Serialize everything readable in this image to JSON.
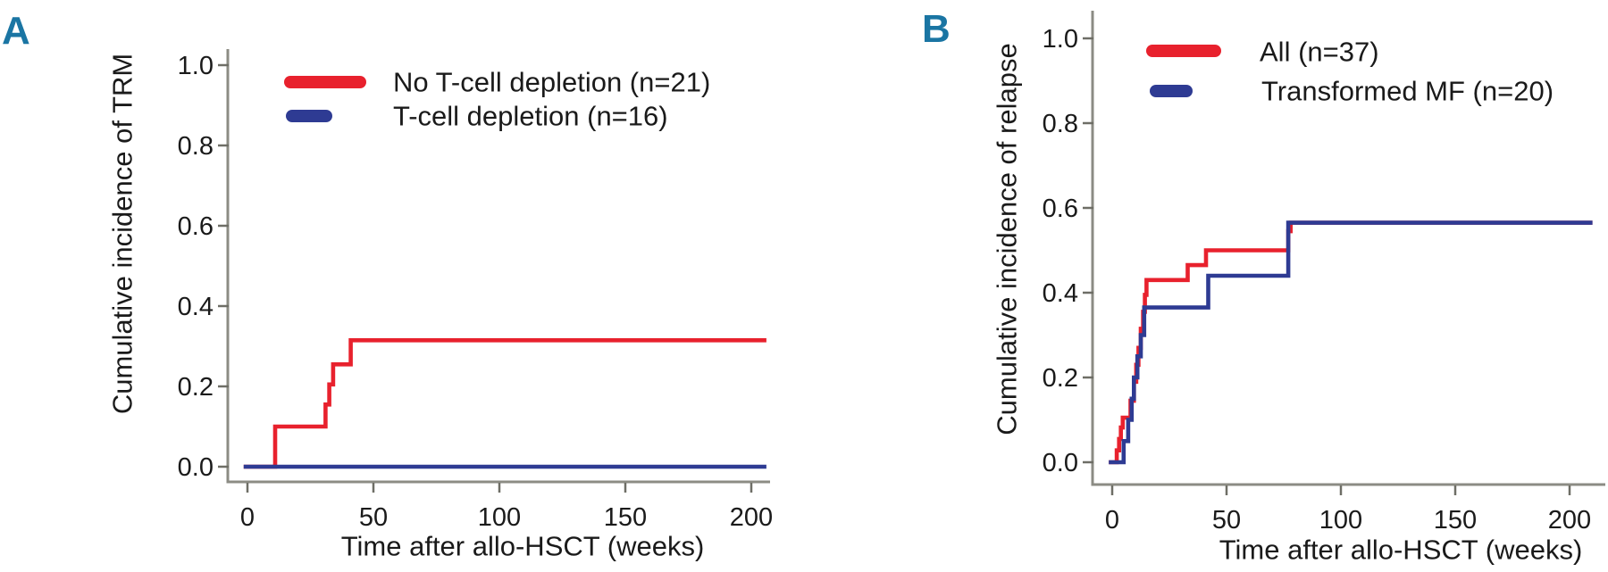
{
  "colors": {
    "red": "#e8212d",
    "navy": "#2e3b93",
    "panel_letter": "#1a75a3",
    "axis_line": "#8c8c84",
    "tick_mark": "#6e6e66",
    "text": "#1a1a1a",
    "background": "#ffffff"
  },
  "chart_data": [
    {
      "type": "line",
      "panel_label": "A",
      "title": "",
      "xlabel": "Time after allo-HSCT (weeks)",
      "ylabel": "Cumulative incidence of TRM",
      "xlim": [
        -8,
        215
      ],
      "ylim": [
        0,
        1.04
      ],
      "xticks": [
        0,
        50,
        100,
        150,
        200
      ],
      "yticks": [
        "0.0",
        "0.2",
        "0.4",
        "0.6",
        "0.8",
        "1.0"
      ],
      "grid": false,
      "legend_position": "inside top-left",
      "series": [
        {
          "name": "No T-cell depletion (n=21)",
          "color_key": "red",
          "step": true,
          "points": [
            [
              -1.5,
              0
            ],
            [
              11,
              0
            ],
            [
              11,
              0.1
            ],
            [
              31,
              0.1
            ],
            [
              31,
              0.155
            ],
            [
              32.5,
              0.155
            ],
            [
              32.5,
              0.205
            ],
            [
              34,
              0.205
            ],
            [
              34,
              0.255
            ],
            [
              41,
              0.255
            ],
            [
              41,
              0.315
            ],
            [
              206,
              0.315
            ]
          ]
        },
        {
          "name": "T-cell depletion (n=16)",
          "color_key": "navy",
          "step": true,
          "points": [
            [
              -1.5,
              0
            ],
            [
              206,
              0
            ]
          ]
        }
      ]
    },
    {
      "type": "line",
      "panel_label": "B",
      "title": "",
      "xlabel": "Time after allo-HSCT (weeks)",
      "ylabel": "Cumulative incidence of relapse",
      "xlim": [
        -8,
        218
      ],
      "ylim": [
        0,
        1.04
      ],
      "xticks": [
        0,
        50,
        100,
        150,
        200
      ],
      "yticks": [
        "0.0",
        "0.2",
        "0.4",
        "0.6",
        "0.8",
        "1.0"
      ],
      "grid": false,
      "legend_position": "inside top-left",
      "series": [
        {
          "name": "All (n=37)",
          "color_key": "red",
          "step": true,
          "points": [
            [
              -1.5,
              0
            ],
            [
              2,
              0
            ],
            [
              2,
              0.028
            ],
            [
              3,
              0.028
            ],
            [
              3,
              0.055
            ],
            [
              3.8,
              0.055
            ],
            [
              3.8,
              0.082
            ],
            [
              4.6,
              0.082
            ],
            [
              4.6,
              0.105
            ],
            [
              8,
              0.105
            ],
            [
              8,
              0.145
            ],
            [
              9.5,
              0.145
            ],
            [
              9.5,
              0.19
            ],
            [
              10.5,
              0.19
            ],
            [
              10.5,
              0.23
            ],
            [
              11.5,
              0.23
            ],
            [
              11.5,
              0.27
            ],
            [
              12.5,
              0.27
            ],
            [
              12.5,
              0.315
            ],
            [
              13.5,
              0.315
            ],
            [
              13.5,
              0.355
            ],
            [
              14.3,
              0.355
            ],
            [
              14.3,
              0.395
            ],
            [
              15,
              0.395
            ],
            [
              15,
              0.43
            ],
            [
              33,
              0.43
            ],
            [
              33,
              0.465
            ],
            [
              41,
              0.465
            ],
            [
              41,
              0.5
            ],
            [
              77,
              0.5
            ],
            [
              77,
              0.545
            ],
            [
              78,
              0.545
            ],
            [
              78,
              0.565
            ],
            [
              210,
              0.565
            ]
          ]
        },
        {
          "name": "Transformed MF (n=20)",
          "color_key": "navy",
          "step": true,
          "points": [
            [
              -1.5,
              0
            ],
            [
              5,
              0
            ],
            [
              5,
              0.05
            ],
            [
              7,
              0.05
            ],
            [
              7,
              0.1
            ],
            [
              8.5,
              0.1
            ],
            [
              8.5,
              0.15
            ],
            [
              9.5,
              0.15
            ],
            [
              9.5,
              0.2
            ],
            [
              11,
              0.2
            ],
            [
              11,
              0.25
            ],
            [
              12.5,
              0.25
            ],
            [
              12.5,
              0.3
            ],
            [
              14,
              0.3
            ],
            [
              14,
              0.365
            ],
            [
              42,
              0.365
            ],
            [
              42,
              0.44
            ],
            [
              77,
              0.44
            ],
            [
              77,
              0.565
            ],
            [
              210,
              0.565
            ]
          ]
        }
      ]
    }
  ]
}
